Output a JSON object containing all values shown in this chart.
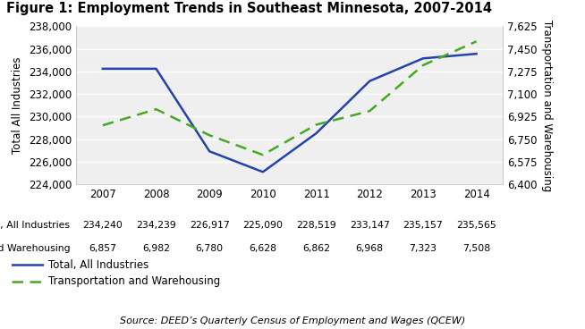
{
  "title": "Figure 1: Employment Trends in Southeast Minnesota, 2007-2014",
  "years": [
    2007,
    2008,
    2009,
    2010,
    2011,
    2012,
    2013,
    2014
  ],
  "total_all_industries": [
    234240,
    234239,
    226917,
    225090,
    228519,
    233147,
    235157,
    235565
  ],
  "transport_warehousing": [
    6857,
    6982,
    6780,
    6628,
    6862,
    6968,
    7323,
    7508
  ],
  "left_ylim": [
    224000,
    238000
  ],
  "left_yticks": [
    224000,
    226000,
    228000,
    230000,
    232000,
    234000,
    236000,
    238000
  ],
  "right_ylim": [
    6400,
    7625
  ],
  "right_yticks": [
    6400,
    6575,
    6750,
    6925,
    7100,
    7275,
    7450,
    7625
  ],
  "left_ylabel": "Total All Industries",
  "right_ylabel": "Transportation and Warehousing",
  "source_text": "Source: DEED’s Quarterly Census of Employment and Wages (QCEW)",
  "legend_line1": "Total, All Industries",
  "legend_line2": "Transportation and Warehousing",
  "data_labels_total": [
    "234,240",
    "234,239",
    "226,917",
    "225,090",
    "228,519",
    "233,147",
    "235,157",
    "235,565"
  ],
  "data_labels_transport": [
    "6,857",
    "6,982",
    "6,780",
    "6,628",
    "6,862",
    "6,968",
    "7,323",
    "7,508"
  ],
  "line1_color": "#2244aa",
  "line2_color": "#44aa22",
  "background_color": "#ffffff",
  "plot_bg_color": "#efefef",
  "grid_color": "#ffffff",
  "x_min": 2006.5,
  "x_max": 2014.5
}
